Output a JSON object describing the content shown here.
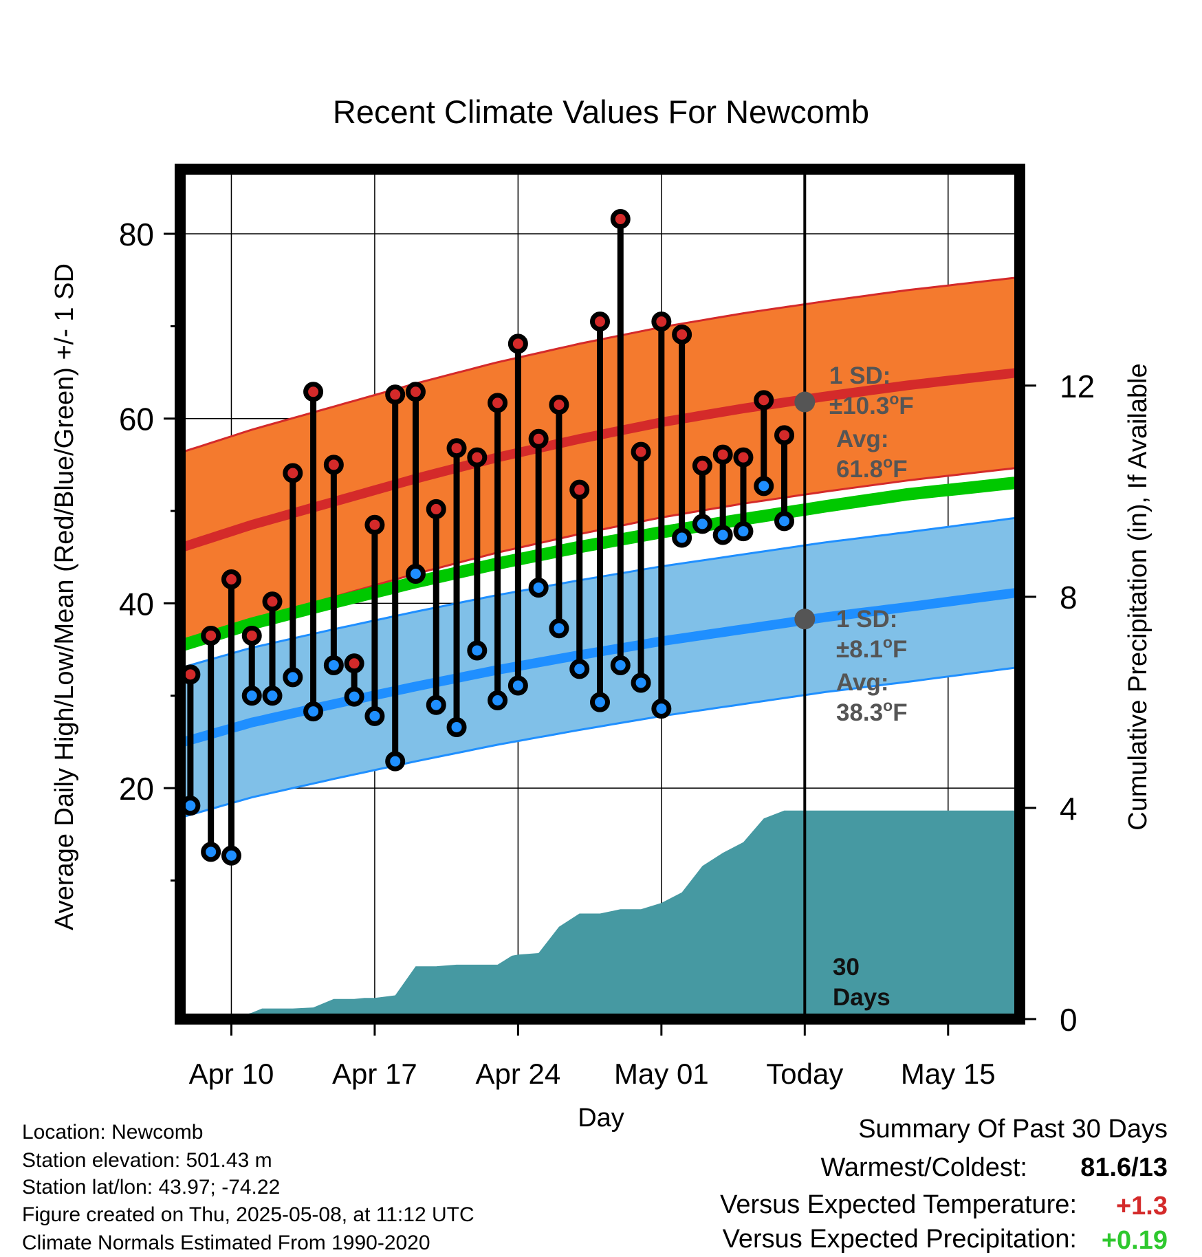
{
  "chart_data": {
    "type": "line",
    "title": "Recent Climate Values For Newcomb",
    "xlabel": "Day",
    "ylabel": "Average Daily High/Low/Mean (Red/Blue/Green) +/- 1 SD",
    "y2label": "Cumulative Precipitation (in), If Available",
    "x_domain_days": [
      -0.5,
      40.5
    ],
    "ylim": [
      -5,
      87
    ],
    "y2lim": [
      0,
      16.1
    ],
    "y_ticks": [
      20,
      40,
      60,
      80
    ],
    "y_minor_ticks": [
      10,
      30,
      50,
      70
    ],
    "y2_ticks": [
      0,
      4,
      8,
      12
    ],
    "x_ticks": [
      {
        "day": 2,
        "label": "Apr 10"
      },
      {
        "day": 9,
        "label": "Apr 17"
      },
      {
        "day": 16,
        "label": "Apr 24"
      },
      {
        "day": 23,
        "label": "May 01"
      },
      {
        "day": 30,
        "label": "Today"
      },
      {
        "day": 37,
        "label": "May 15"
      }
    ],
    "today_day": 30,
    "today_label": "30 Days",
    "normals": {
      "days": [
        -0.5,
        3,
        7,
        11,
        15,
        19,
        23,
        27,
        31,
        35,
        40.5
      ],
      "high_avg": [
        46,
        48.5,
        51,
        53.5,
        55.8,
        57.8,
        59.6,
        61.1,
        62.4,
        63.6,
        65
      ],
      "low_avg": [
        24.9,
        27.1,
        29.1,
        31,
        32.8,
        34.4,
        35.9,
        37.2,
        38.5,
        39.6,
        41.2
      ],
      "mean_avg": [
        35.4,
        37.8,
        40.1,
        42.3,
        44.3,
        46.1,
        47.7,
        49.1,
        50.5,
        51.8,
        53.1
      ],
      "high_sd": 10.3,
      "low_sd": 8.1
    },
    "series": [
      {
        "name": "High",
        "days": [
          0,
          1,
          2,
          3,
          4,
          5,
          6,
          7,
          8,
          9,
          10,
          11,
          12,
          13,
          14,
          15,
          16,
          17,
          18,
          19,
          20,
          21,
          22,
          23,
          24,
          25,
          26,
          27,
          28,
          29
        ],
        "values": [
          32.3,
          36.5,
          42.6,
          36.5,
          40.2,
          54.1,
          62.9,
          55,
          33.5,
          48.5,
          62.6,
          62.9,
          50.2,
          56.8,
          55.8,
          61.7,
          68.1,
          57.8,
          61.5,
          52.3,
          70.5,
          81.6,
          56.4,
          70.5,
          69.1,
          54.9,
          56.1,
          55.8,
          62,
          58.2
        ]
      },
      {
        "name": "Low",
        "days": [
          0,
          1,
          2,
          3,
          4,
          5,
          6,
          7,
          8,
          9,
          10,
          11,
          12,
          13,
          14,
          15,
          16,
          17,
          18,
          19,
          20,
          21,
          22,
          23,
          24,
          25,
          26,
          27,
          28,
          29
        ],
        "values": [
          18.1,
          13.1,
          12.7,
          30,
          30,
          32,
          28.3,
          33.3,
          29.9,
          27.8,
          22.9,
          43.2,
          29,
          26.6,
          34.9,
          29.5,
          31.1,
          41.7,
          37.3,
          32.9,
          29.3,
          33.3,
          31.4,
          28.6,
          47.1,
          48.6,
          47.4,
          47.8,
          52.7,
          48.9
        ]
      }
    ],
    "precipitation": {
      "days": [
        1.6,
        2,
        2.3,
        3,
        3.5,
        4,
        5,
        6,
        7,
        8,
        8.5,
        9,
        10,
        11,
        12,
        13,
        14,
        15,
        15.7,
        16,
        17,
        18,
        19,
        20,
        21,
        22,
        23,
        24,
        25,
        26,
        27,
        28,
        29,
        30,
        40.5
      ],
      "cumulative": [
        0,
        0.02,
        0.05,
        0.12,
        0.2,
        0.2,
        0.2,
        0.22,
        0.38,
        0.38,
        0.4,
        0.4,
        0.45,
        1.0,
        1.0,
        1.03,
        1.03,
        1.03,
        1.2,
        1.22,
        1.25,
        1.75,
        2.0,
        2.0,
        2.08,
        2.08,
        2.2,
        2.4,
        2.9,
        3.15,
        3.35,
        3.8,
        3.95,
        3.95,
        3.95
      ]
    },
    "annotations": {
      "high_label_1": "1 SD:",
      "high_label_2": "±10.3",
      "high_label_3": "Avg:",
      "high_label_4": "61.8",
      "low_label_1": "1 SD:",
      "low_label_2": "±8.1",
      "low_label_3": "Avg:",
      "low_label_4": "38.3",
      "deg": "o",
      "unit": "F",
      "high_avg_today": 61.8,
      "low_avg_today": 38.3
    }
  },
  "station": {
    "location": "Location: Newcomb",
    "elevation": "Station elevation: 501.43 m",
    "latlon": "Station lat/lon: 43.97; -74.22",
    "created": "Figure created on Thu, 2025-05-08, at 11:12 UTC",
    "normals": "Climate Normals Estimated From 1990-2020"
  },
  "summary": {
    "title": "Summary Of Past 30 Days",
    "warm_cold_label": "Warmest/Coldest:",
    "warm_cold_value": "81.6/13",
    "temp_label": "Versus Expected Temperature:",
    "temp_value": "+1.3",
    "precip_label": "Versus Expected Precipitation:",
    "precip_value": "+0.19"
  },
  "colors": {
    "high": "#d42a2a",
    "high_band": "#f47a2e",
    "low": "#1f8fff",
    "low_band": "#80c0e8",
    "mean": "#00c800",
    "precip": "#4699a2",
    "annotation": "#555555",
    "temp_value": "#d42a2a",
    "precip_value": "#2ec82e"
  }
}
